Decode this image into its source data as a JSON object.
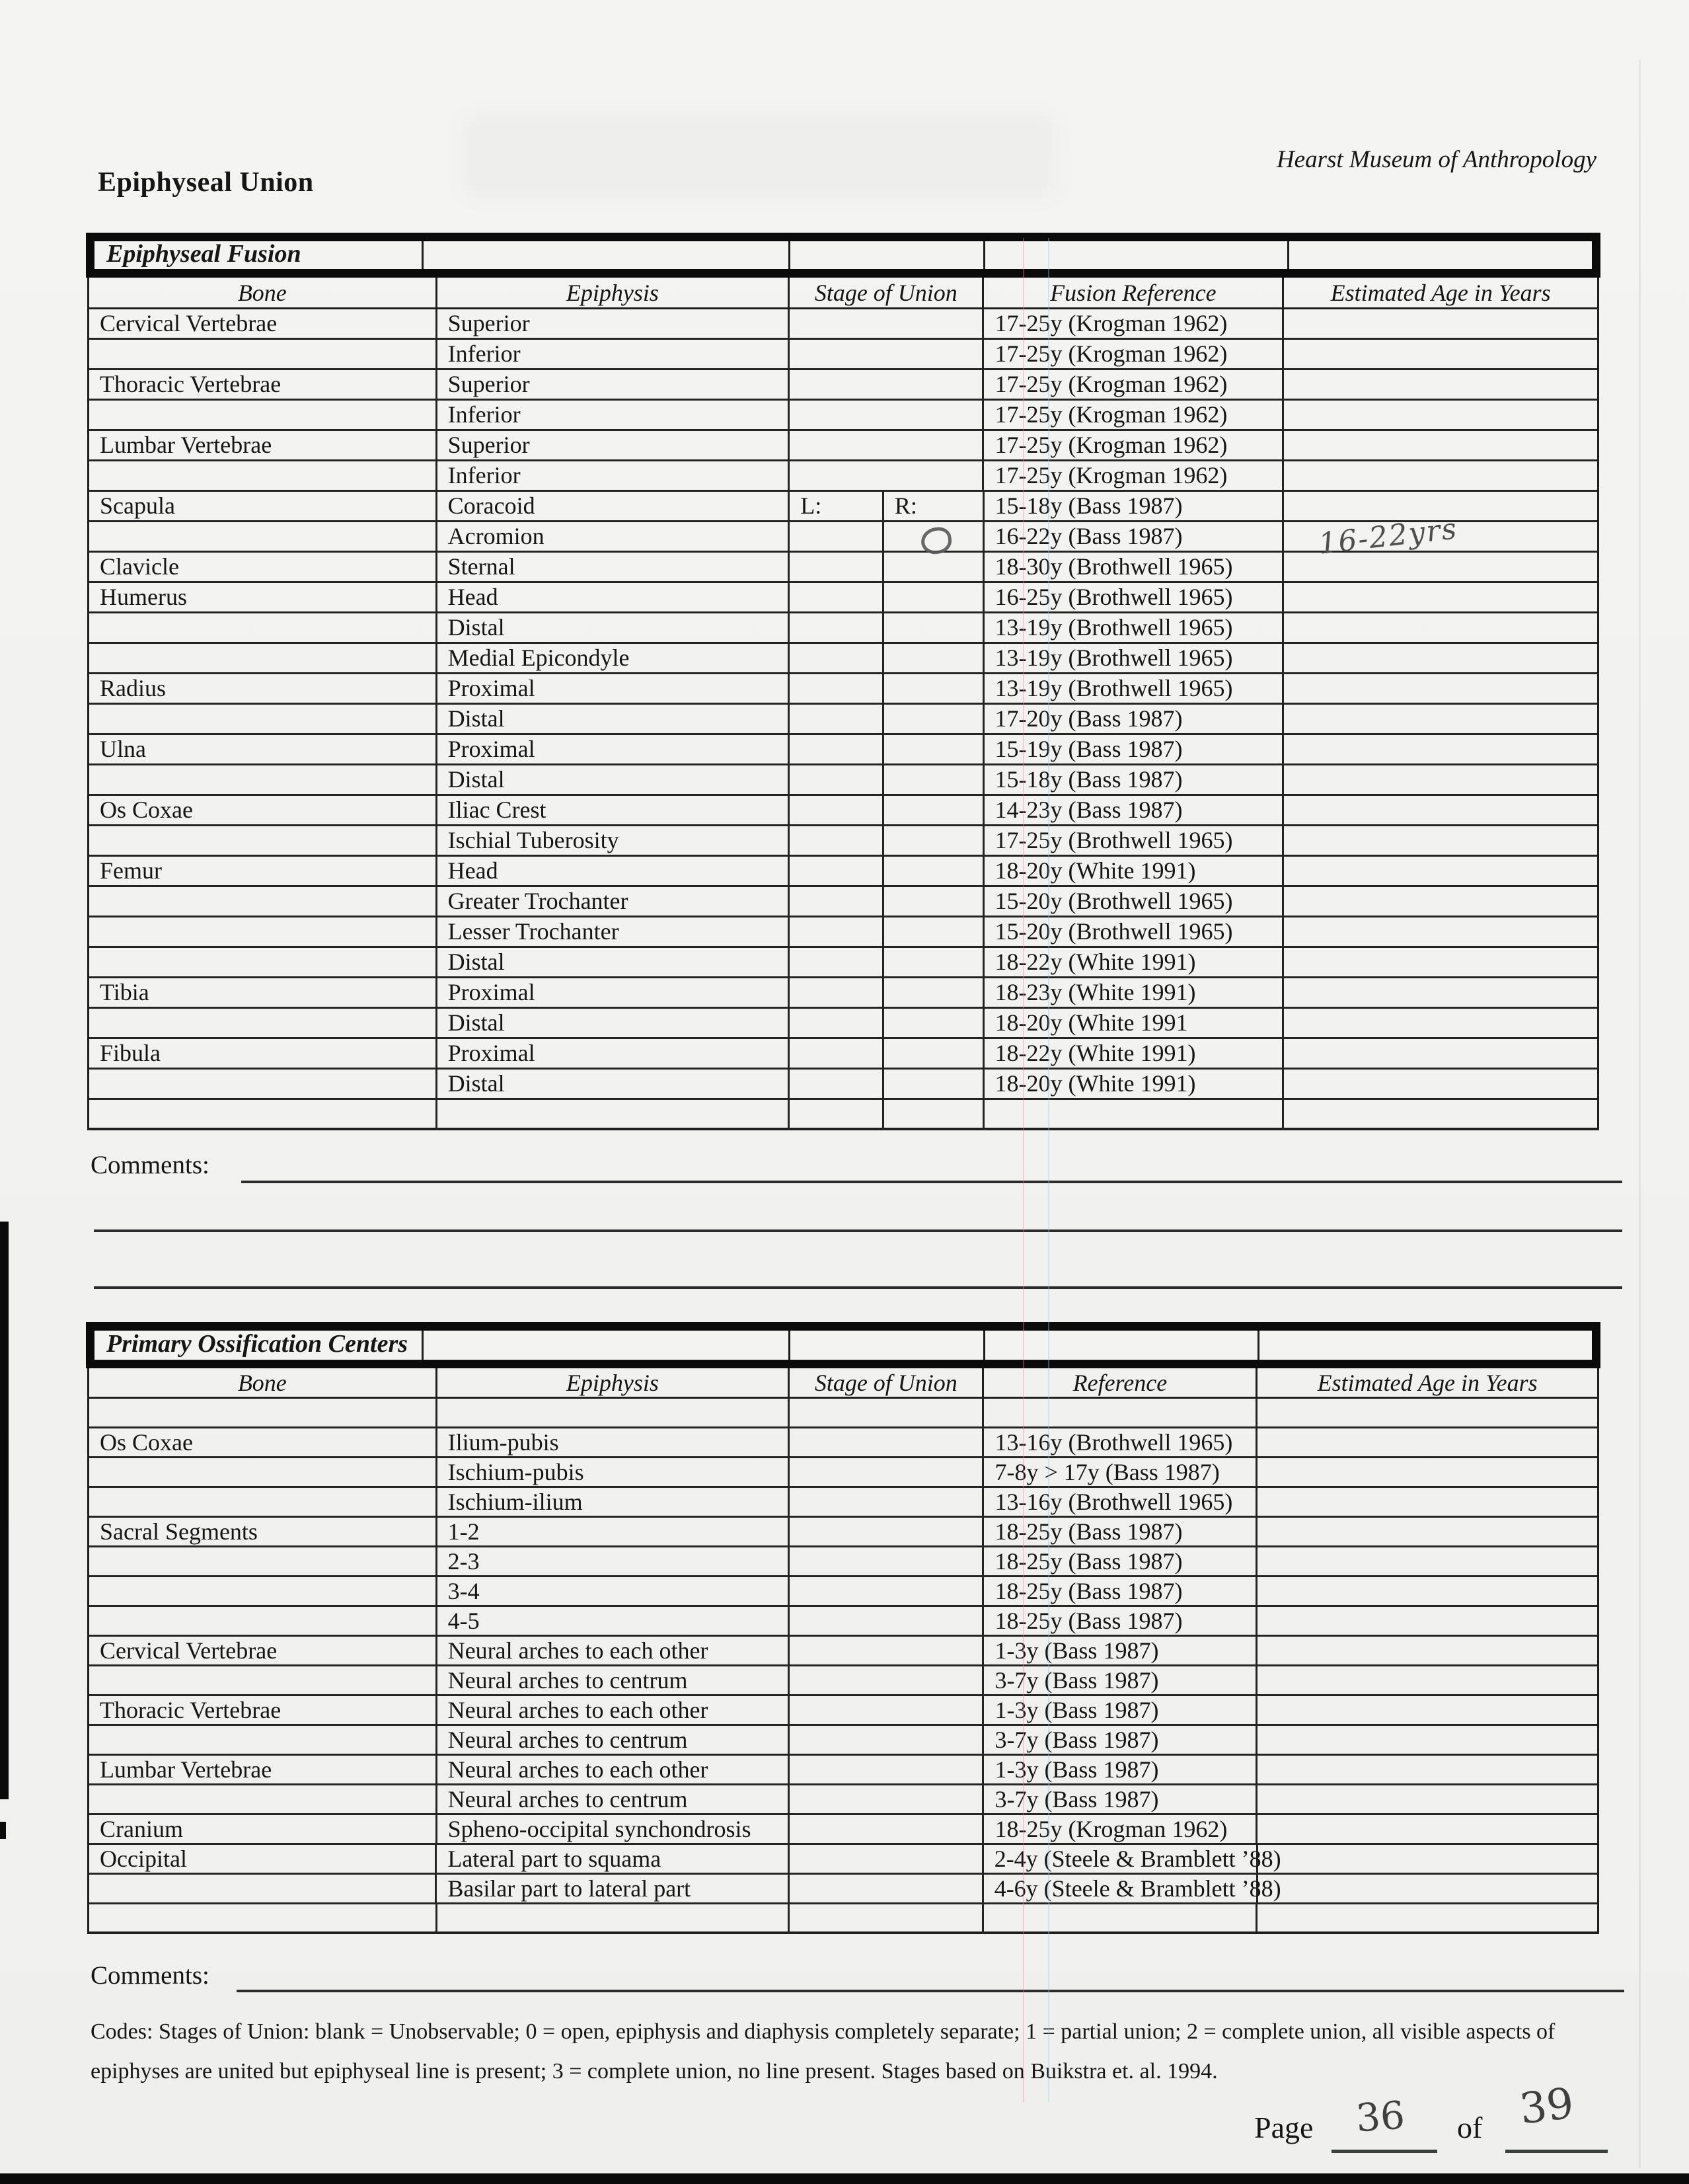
{
  "header": {
    "doc_title": "Epiphyseal Union",
    "org": "Hearst Museum of Anthropology"
  },
  "fusion_table": {
    "title": "Epiphyseal Fusion",
    "columns": [
      "Bone",
      "Epiphysis",
      "Stage of Union",
      "Fusion Reference",
      "Estimated Age in Years"
    ],
    "rows": [
      {
        "bone": "Cervical Vertebrae",
        "epiphysis": "Superior",
        "stage": "single",
        "reference": "17-25y (Krogman 1962)"
      },
      {
        "bone": "",
        "epiphysis": "Inferior",
        "stage": "single",
        "reference": "17-25y (Krogman 1962)"
      },
      {
        "bone": "Thoracic Vertebrae",
        "epiphysis": "Superior",
        "stage": "single",
        "reference": "17-25y (Krogman 1962)"
      },
      {
        "bone": "",
        "epiphysis": "Inferior",
        "stage": "single",
        "reference": "17-25y (Krogman 1962)"
      },
      {
        "bone": "Lumbar Vertebrae",
        "epiphysis": "Superior",
        "stage": "single",
        "reference": "17-25y (Krogman 1962)"
      },
      {
        "bone": "",
        "epiphysis": "Inferior",
        "stage": "single",
        "reference": "17-25y (Krogman 1962)"
      },
      {
        "bone": "Scapula",
        "epiphysis": "Coracoid",
        "stage": "split",
        "stage_l": "L:",
        "stage_r": "R:",
        "reference": "15-18y (Bass 1987)"
      },
      {
        "bone": "",
        "epiphysis": "Acromion",
        "stage": "split",
        "stage_l": "",
        "stage_r": "",
        "stage_r_mark": "handwritten-open-circle",
        "reference": "16-22y (Bass 1987)",
        "estimated_handwritten": "16-22yrs"
      },
      {
        "bone": "Clavicle",
        "epiphysis": "Sternal",
        "stage": "split",
        "reference": "18-30y (Brothwell 1965)"
      },
      {
        "bone": "Humerus",
        "epiphysis": "Head",
        "stage": "split",
        "reference": "16-25y (Brothwell 1965)"
      },
      {
        "bone": "",
        "epiphysis": "Distal",
        "stage": "split",
        "reference": "13-19y (Brothwell 1965)"
      },
      {
        "bone": "",
        "epiphysis": "Medial Epicondyle",
        "stage": "split",
        "reference": "13-19y (Brothwell 1965)"
      },
      {
        "bone": "Radius",
        "epiphysis": "Proximal",
        "stage": "split",
        "reference": "13-19y (Brothwell 1965)"
      },
      {
        "bone": "",
        "epiphysis": "Distal",
        "stage": "split",
        "reference": "17-20y (Bass 1987)"
      },
      {
        "bone": "Ulna",
        "epiphysis": "Proximal",
        "stage": "split",
        "reference": "15-19y (Bass 1987)"
      },
      {
        "bone": "",
        "epiphysis": "Distal",
        "stage": "split",
        "reference": "15-18y (Bass 1987)"
      },
      {
        "bone": "Os Coxae",
        "epiphysis": "Iliac Crest",
        "stage": "split",
        "reference": "14-23y (Bass 1987)"
      },
      {
        "bone": "",
        "epiphysis": "Ischial Tuberosity",
        "stage": "split",
        "reference": "17-25y (Brothwell 1965)"
      },
      {
        "bone": "Femur",
        "epiphysis": "Head",
        "stage": "split",
        "reference": "18-20y (White 1991)"
      },
      {
        "bone": "",
        "epiphysis": "Greater Trochanter",
        "stage": "split",
        "reference": "15-20y (Brothwell 1965)"
      },
      {
        "bone": "",
        "epiphysis": "Lesser Trochanter",
        "stage": "split",
        "reference": "15-20y (Brothwell 1965)"
      },
      {
        "bone": "",
        "epiphysis": "Distal",
        "stage": "split",
        "reference": "18-22y (White 1991)"
      },
      {
        "bone": "Tibia",
        "epiphysis": "Proximal",
        "stage": "split",
        "reference": "18-23y (White 1991)"
      },
      {
        "bone": "",
        "epiphysis": "Distal",
        "stage": "split",
        "reference": "18-20y (White 1991"
      },
      {
        "bone": "Fibula",
        "epiphysis": "Proximal",
        "stage": "split",
        "reference": "18-22y (White 1991)"
      },
      {
        "bone": "",
        "epiphysis": "Distal",
        "stage": "split",
        "reference": "18-20y (White 1991)"
      },
      {
        "bone": "",
        "epiphysis": "",
        "stage": "split",
        "reference": ""
      }
    ]
  },
  "comments1": {
    "label": "Comments:"
  },
  "ossification_table": {
    "title": "Primary Ossification Centers",
    "columns": [
      "Bone",
      "Epiphysis",
      "Stage of Union",
      "Reference",
      "Estimated Age in Years"
    ],
    "rows": [
      {
        "bone": "",
        "epiphysis": "",
        "reference": ""
      },
      {
        "bone": "Os Coxae",
        "epiphysis": "Ilium-pubis",
        "reference": "13-16y (Brothwell 1965)"
      },
      {
        "bone": "",
        "epiphysis": "Ischium-pubis",
        "reference": "7-8y > 17y (Bass 1987)"
      },
      {
        "bone": "",
        "epiphysis": "Ischium-ilium",
        "reference": "13-16y (Brothwell 1965)"
      },
      {
        "bone": "Sacral Segments",
        "epiphysis": "1-2",
        "reference": "18-25y (Bass 1987)"
      },
      {
        "bone": "",
        "epiphysis": "2-3",
        "reference": "18-25y (Bass 1987)"
      },
      {
        "bone": "",
        "epiphysis": "3-4",
        "reference": "18-25y (Bass 1987)"
      },
      {
        "bone": "",
        "epiphysis": "4-5",
        "reference": "18-25y (Bass 1987)"
      },
      {
        "bone": "Cervical Vertebrae",
        "epiphysis": "Neural arches to each other",
        "reference": "1-3y (Bass 1987)"
      },
      {
        "bone": "",
        "epiphysis": "Neural arches to centrum",
        "reference": "3-7y (Bass 1987)"
      },
      {
        "bone": "Thoracic Vertebrae",
        "epiphysis": "Neural arches to each other",
        "reference": "1-3y (Bass 1987)"
      },
      {
        "bone": "",
        "epiphysis": "Neural arches to centrum",
        "reference": "3-7y (Bass 1987)"
      },
      {
        "bone": "Lumbar Vertebrae",
        "epiphysis": "Neural arches to each other",
        "reference": "1-3y (Bass 1987)"
      },
      {
        "bone": "",
        "epiphysis": "Neural arches to centrum",
        "reference": "3-7y (Bass 1987)"
      },
      {
        "bone": "Cranium",
        "epiphysis": "Spheno-occipital synchondrosis",
        "reference": "18-25y (Krogman 1962)"
      },
      {
        "bone": "Occipital",
        "epiphysis": "Lateral part to squama",
        "reference": "2-4y (Steele & Bramblett ’88)"
      },
      {
        "bone": "",
        "epiphysis": "Basilar part to lateral part",
        "reference": "4-6y (Steele & Bramblett ’88)"
      },
      {
        "bone": "",
        "epiphysis": "",
        "reference": ""
      }
    ]
  },
  "comments2": {
    "label": "Comments:"
  },
  "codes": {
    "line1": "Codes:  Stages of Union: blank = Unobservable; 0 = open, epiphysis and diaphysis completely separate; 1 = partial union; 2 = complete union, all visible aspects of",
    "line2": "epiphyses are united but epiphyseal line is present; 3 = complete union, no line present.   Stages based on Buikstra et. al. 1994."
  },
  "footer": {
    "page_label": "Page",
    "page_number": "36",
    "of_label": "of",
    "total_pages": "39"
  }
}
